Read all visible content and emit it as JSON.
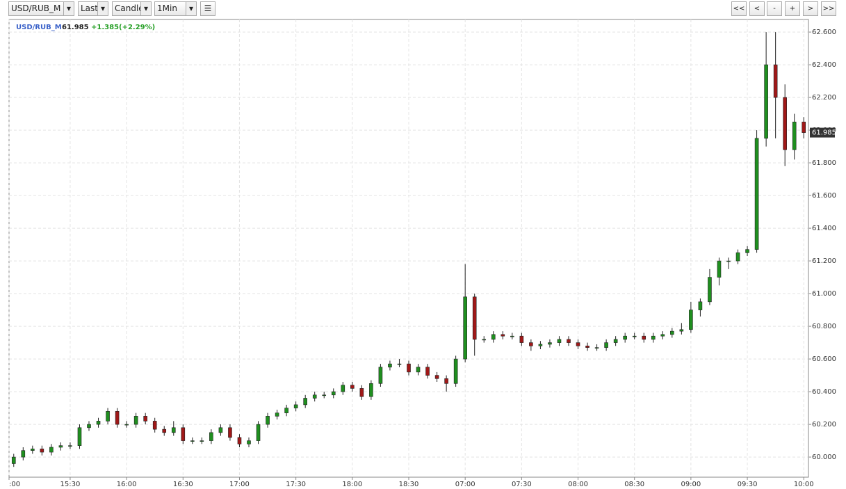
{
  "toolbar": {
    "symbol": "USD/RUB_M",
    "price_type": "Last",
    "chart_style": "Candle",
    "interval": "1Min",
    "nav": [
      "<<",
      "<",
      "-",
      "+",
      ">",
      ">>"
    ]
  },
  "chart_data": {
    "type": "candlestick",
    "symbol": "USD/RUB_M",
    "change": "+1.385(+2.29%)",
    "up_color": "#1f8f1f",
    "down_color": "#a01818",
    "grid": true,
    "x": [
      "15:00",
      "15:05",
      "15:10",
      "15:15",
      "15:20",
      "15:25",
      "15:30",
      "15:35",
      "15:40",
      "15:45",
      "15:50",
      "15:55",
      "16:00",
      "16:05",
      "16:10",
      "16:15",
      "16:20",
      "16:25",
      "16:30",
      "16:35",
      "16:40",
      "16:45",
      "16:50",
      "16:55",
      "17:00",
      "17:05",
      "17:10",
      "17:15",
      "17:20",
      "17:25",
      "17:30",
      "17:35",
      "17:40",
      "17:45",
      "17:50",
      "17:55",
      "18:00",
      "18:05",
      "18:10",
      "18:15",
      "18:20",
      "18:25",
      "18:30",
      "18:35",
      "18:40",
      "18:45",
      "18:50",
      "18:55",
      "07:00",
      "07:05",
      "07:10",
      "07:15",
      "07:20",
      "07:25",
      "07:30",
      "07:35",
      "07:40",
      "07:45",
      "07:50",
      "07:55",
      "08:00",
      "08:05",
      "08:10",
      "08:15",
      "08:20",
      "08:25",
      "08:30",
      "08:35",
      "08:40",
      "08:45",
      "08:50",
      "08:55",
      "09:00",
      "09:05",
      "09:10",
      "09:15",
      "09:20",
      "09:25",
      "09:30",
      "09:35",
      "09:40",
      "09:45",
      "09:50",
      "09:55",
      "10:00"
    ],
    "open": [
      59.96,
      60.0,
      60.04,
      60.05,
      60.03,
      60.06,
      60.07,
      60.07,
      60.18,
      60.2,
      60.22,
      60.28,
      60.2,
      60.2,
      60.25,
      60.22,
      60.17,
      60.15,
      60.18,
      60.1,
      60.1,
      60.1,
      60.15,
      60.18,
      60.12,
      60.08,
      60.1,
      60.2,
      60.25,
      60.27,
      60.3,
      60.32,
      60.36,
      60.38,
      60.38,
      60.4,
      60.44,
      60.42,
      60.37,
      60.45,
      60.55,
      60.57,
      60.57,
      60.52,
      60.55,
      60.5,
      60.48,
      60.45,
      60.6,
      60.98,
      60.72,
      60.72,
      60.75,
      60.74,
      60.74,
      60.7,
      60.68,
      60.69,
      60.7,
      60.72,
      60.7,
      60.68,
      60.67,
      60.67,
      60.7,
      60.72,
      60.74,
      60.74,
      60.72,
      60.74,
      60.75,
      60.77,
      60.78,
      60.9,
      60.95,
      61.1,
      61.2,
      61.2,
      61.25,
      61.27,
      61.95,
      62.4,
      62.2,
      61.88,
      62.05
    ],
    "high": [
      60.02,
      60.06,
      60.07,
      60.07,
      60.08,
      60.09,
      60.09,
      60.2,
      60.22,
      60.24,
      60.3,
      60.3,
      60.22,
      60.27,
      60.27,
      60.24,
      60.19,
      60.22,
      60.2,
      60.12,
      60.12,
      60.17,
      60.2,
      60.2,
      60.14,
      60.12,
      60.22,
      60.27,
      60.29,
      60.32,
      60.34,
      60.38,
      60.4,
      60.4,
      60.42,
      60.46,
      60.46,
      60.44,
      60.47,
      60.57,
      60.59,
      60.6,
      60.59,
      60.57,
      60.57,
      60.52,
      60.5,
      60.62,
      61.18,
      61.0,
      60.74,
      60.77,
      60.77,
      60.76,
      60.76,
      60.72,
      60.71,
      60.72,
      60.74,
      60.74,
      60.72,
      60.7,
      60.69,
      60.72,
      60.74,
      60.76,
      60.76,
      60.76,
      60.76,
      60.77,
      60.79,
      60.82,
      60.95,
      60.97,
      61.15,
      61.22,
      61.22,
      61.27,
      61.29,
      62.0,
      62.6,
      62.6,
      62.28,
      62.1,
      62.08
    ],
    "low": [
      59.94,
      59.98,
      60.02,
      60.01,
      60.01,
      60.04,
      60.05,
      60.05,
      60.16,
      60.18,
      60.2,
      60.18,
      60.18,
      60.18,
      60.2,
      60.15,
      60.13,
      60.13,
      60.08,
      60.08,
      60.08,
      60.08,
      60.13,
      60.1,
      60.06,
      60.06,
      60.08,
      60.18,
      60.23,
      60.25,
      60.28,
      60.3,
      60.34,
      60.36,
      60.36,
      60.38,
      60.4,
      60.35,
      60.35,
      60.43,
      60.53,
      60.55,
      60.5,
      60.5,
      60.48,
      60.46,
      60.4,
      60.43,
      60.58,
      60.62,
      60.7,
      60.7,
      60.72,
      60.72,
      60.68,
      60.65,
      60.66,
      60.67,
      60.68,
      60.68,
      60.66,
      60.65,
      60.65,
      60.65,
      60.68,
      60.7,
      60.72,
      60.7,
      60.7,
      60.72,
      60.73,
      60.75,
      60.76,
      60.86,
      60.93,
      61.05,
      61.15,
      61.18,
      61.23,
      61.25,
      61.9,
      61.95,
      61.78,
      61.82,
      61.95
    ],
    "close": [
      60.0,
      60.04,
      60.05,
      60.03,
      60.06,
      60.07,
      60.07,
      60.18,
      60.2,
      60.22,
      60.28,
      60.2,
      60.2,
      60.25,
      60.22,
      60.17,
      60.15,
      60.18,
      60.1,
      60.1,
      60.1,
      60.15,
      60.18,
      60.12,
      60.08,
      60.1,
      60.2,
      60.25,
      60.27,
      60.3,
      60.32,
      60.36,
      60.38,
      60.38,
      60.4,
      60.44,
      60.42,
      60.37,
      60.45,
      60.55,
      60.57,
      60.57,
      60.52,
      60.55,
      60.5,
      60.48,
      60.45,
      60.6,
      60.98,
      60.72,
      60.72,
      60.75,
      60.74,
      60.74,
      60.7,
      60.68,
      60.69,
      60.7,
      60.72,
      60.7,
      60.68,
      60.67,
      60.67,
      60.7,
      60.72,
      60.74,
      60.74,
      60.72,
      60.74,
      60.75,
      60.77,
      60.78,
      60.9,
      60.95,
      61.1,
      61.2,
      61.2,
      61.25,
      61.27,
      61.95,
      62.4,
      62.2,
      61.88,
      62.05,
      61.985
    ],
    "ylim": [
      59.877,
      62.677
    ],
    "yticks": [
      {
        "value": 60.0,
        "label": "60.000"
      },
      {
        "value": 60.2,
        "label": "60.200"
      },
      {
        "value": 60.4,
        "label": "60.400"
      },
      {
        "value": 60.6,
        "label": "60.600"
      },
      {
        "value": 60.8,
        "label": "60.800"
      },
      {
        "value": 61.0,
        "label": "61.000"
      },
      {
        "value": 61.2,
        "label": "61.200"
      },
      {
        "value": 61.4,
        "label": "61.400"
      },
      {
        "value": 61.6,
        "label": "61.600"
      },
      {
        "value": 61.8,
        "label": "61.800"
      },
      {
        "value": 62.0,
        "label": "62.000"
      },
      {
        "value": 62.2,
        "label": "62.200"
      },
      {
        "value": 62.4,
        "label": "62.400"
      },
      {
        "value": 62.6,
        "label": "62.600"
      }
    ],
    "xticks": [
      {
        "value": "15:00",
        "label": ":00"
      },
      "15:30",
      "16:00",
      "16:30",
      "17:00",
      "17:30",
      "18:00",
      "18:30",
      "07:00",
      "07:30",
      "08:00",
      "08:30",
      "09:00",
      "09:30",
      "10:00"
    ]
  }
}
